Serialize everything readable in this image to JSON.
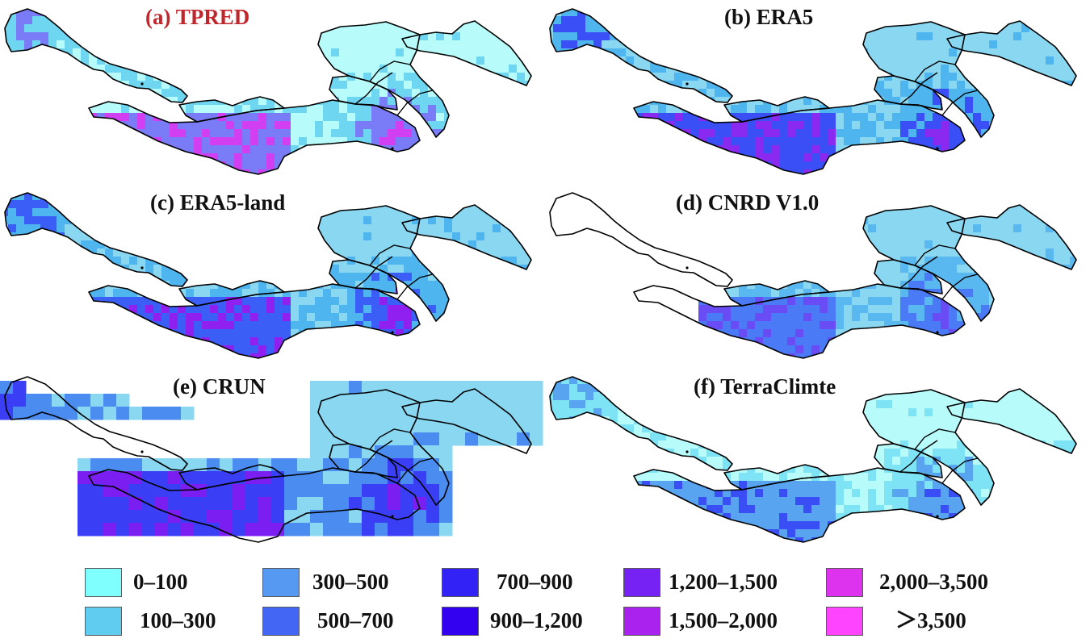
{
  "panels": [
    {
      "id": "a",
      "title": "(a) TPRED",
      "title_color": "#c0262c",
      "coverage": "full",
      "fill": [
        "#b8fbfb",
        "#6fd6f2",
        "#7a7cf7",
        "#d23ff2",
        "#ff46f5"
      ]
    },
    {
      "id": "b",
      "title": "(b) ERA5",
      "title_color": "#111111",
      "coverage": "full",
      "fill": [
        "#8ad7f2",
        "#4fb5ee",
        "#3a4ff5",
        "#8a2af0",
        "#ff40f2"
      ]
    },
    {
      "id": "c",
      "title": "(c) ERA5-land",
      "title_color": "#111111",
      "coverage": "full",
      "fill": [
        "#8ad7f2",
        "#4fb5ee",
        "#3a5ef6",
        "#9020f0",
        "#ff40f2"
      ]
    },
    {
      "id": "d",
      "title": "(d) CNRD V1.0",
      "title_color": "#111111",
      "coverage": "east",
      "fill": [
        "#8ad7f2",
        "#58b8ef",
        "#4a7af6",
        "#6a4cf5",
        "#ff40f2"
      ]
    },
    {
      "id": "e",
      "title": "(e) CRUN",
      "title_color": "#111111",
      "coverage": "grid",
      "fill": [
        "#8ad7f2",
        "#4a8cf0",
        "#3a3ef5",
        "#7a1ef2",
        "#e040f2"
      ]
    },
    {
      "id": "f",
      "title": "(f) TerraClimte",
      "title_color": "#111111",
      "coverage": "full",
      "fill": [
        "#b8fbfb",
        "#7ee3f5",
        "#58a4f0",
        "#3a4ef5",
        "#7a22f0"
      ]
    }
  ],
  "legend": [
    {
      "label": "0–100",
      "color": "#80ffff"
    },
    {
      "label": "100–300",
      "color": "#60ccf0"
    },
    {
      "label": "300–500",
      "color": "#5599f2"
    },
    {
      "label": "500–700",
      "color": "#4466f5"
    },
    {
      "label": "700–900",
      "color": "#3322f5"
    },
    {
      "label": "900–1,200",
      "color": "#3300f0"
    },
    {
      "label": "1,200–1,500",
      "color": "#7722f5"
    },
    {
      "label": "1,500–2,000",
      "color": "#aa22ee"
    },
    {
      "label": "2,000–3,500",
      "color": "#dd33ee"
    },
    {
      "label": "＞3,500",
      "color": "#ff44ff"
    }
  ]
}
